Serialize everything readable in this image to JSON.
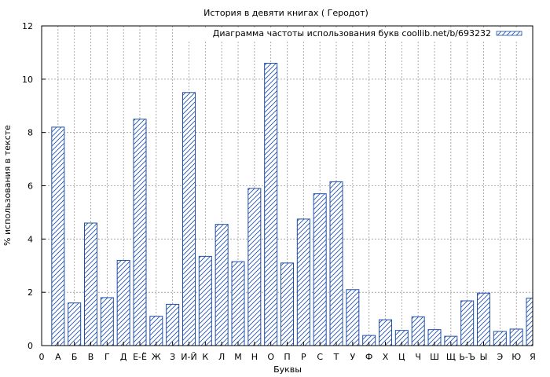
{
  "chart_data": {
    "type": "bar",
    "title": "История в девяти книгах ( Геродот)",
    "xlabel": "Буквы",
    "ylabel": "% использования в тексте",
    "ylim": [
      0,
      12
    ],
    "yticks": [
      "0",
      "2",
      "4",
      "6",
      "8",
      "10",
      "12"
    ],
    "x_start_label": "0",
    "grid": true,
    "legend_position": "top-right",
    "colors": {
      "bar_stroke": "#1f4fa8",
      "grid": "#999999",
      "axis": "#000000"
    },
    "series": [
      {
        "name": "Диаграмма частоты использования букв coollib.net/b/693232",
        "pattern": "diagonal-hatch"
      }
    ],
    "categories": [
      "А",
      "Б",
      "В",
      "Г",
      "Д",
      "Е-Ё",
      "Ж",
      "З",
      "И-Й",
      "К",
      "Л",
      "М",
      "Н",
      "О",
      "П",
      "Р",
      "С",
      "Т",
      "У",
      "Ф",
      "Х",
      "Ц",
      "Ч",
      "Ш",
      "Щ",
      "Ь-Ъ",
      "Ы",
      "Э",
      "Ю",
      "Я"
    ],
    "values": [
      8.2,
      1.6,
      4.6,
      1.8,
      3.2,
      8.5,
      1.1,
      1.55,
      9.5,
      3.35,
      4.55,
      3.15,
      5.9,
      10.6,
      3.1,
      4.75,
      5.7,
      6.15,
      2.1,
      0.38,
      0.97,
      0.57,
      1.08,
      0.6,
      0.35,
      1.68,
      1.97,
      0.53,
      0.62,
      1.78
    ]
  }
}
